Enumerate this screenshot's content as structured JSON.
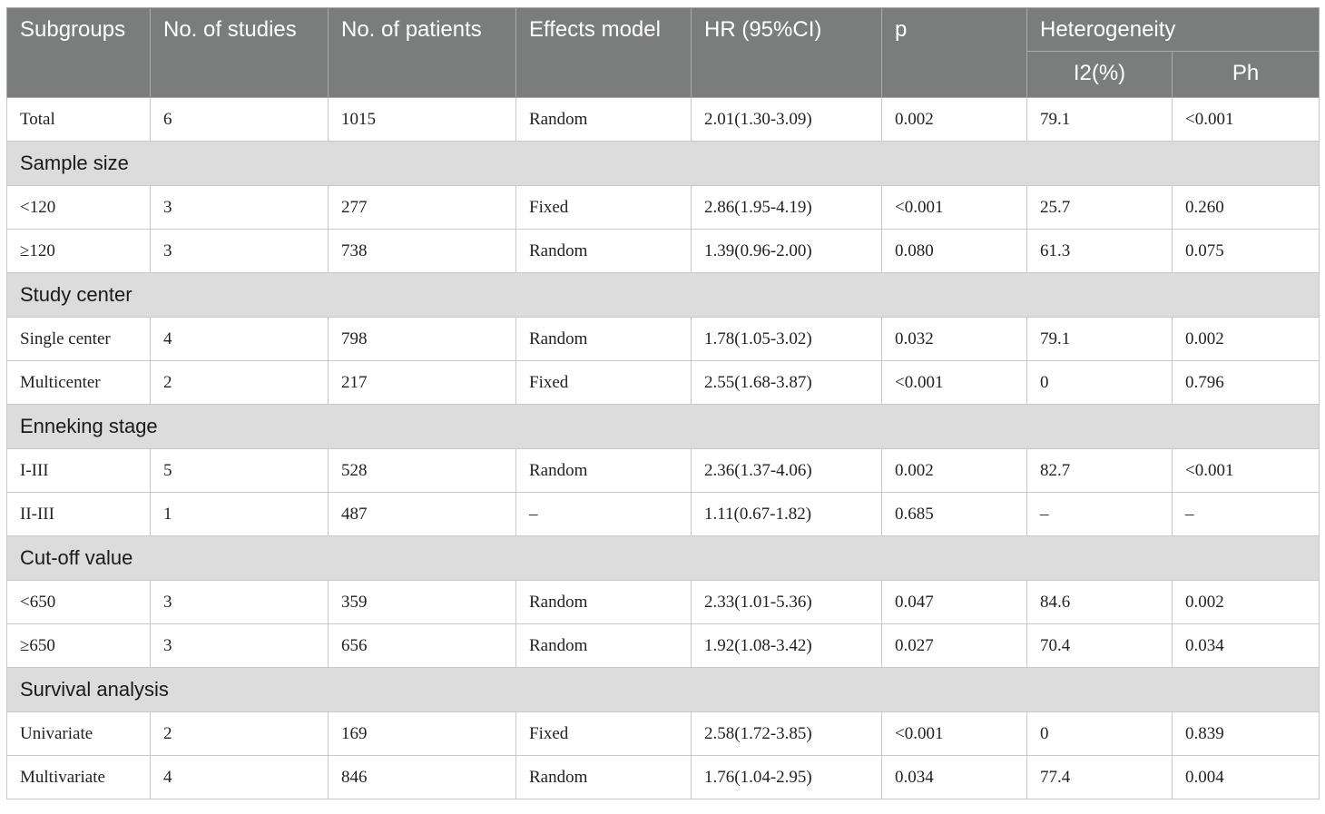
{
  "headers": {
    "subgroups": "Subgroups",
    "no_studies": "No. of studies",
    "no_patients": "No. of patients",
    "effects_model": "Effects model",
    "hr": "HR (95%CI)",
    "p": "p",
    "heterogeneity": "Heterogeneity",
    "i2": "I2(%)",
    "ph": "Ph"
  },
  "rows": [
    {
      "type": "data",
      "cells": [
        "Total",
        "6",
        "1015",
        "Random",
        "2.01(1.30-3.09)",
        "0.002",
        "79.1",
        "<0.001"
      ]
    },
    {
      "type": "group",
      "label": "Sample size"
    },
    {
      "type": "data",
      "cells": [
        "<120",
        "3",
        "277",
        "Fixed",
        "2.86(1.95-4.19)",
        "<0.001",
        "25.7",
        "0.260"
      ]
    },
    {
      "type": "data",
      "cells": [
        "≥120",
        "3",
        "738",
        "Random",
        "1.39(0.96-2.00)",
        "0.080",
        "61.3",
        "0.075"
      ]
    },
    {
      "type": "group",
      "label": "Study center"
    },
    {
      "type": "data",
      "cells": [
        "Single center",
        "4",
        "798",
        "Random",
        "1.78(1.05-3.02)",
        "0.032",
        "79.1",
        "0.002"
      ]
    },
    {
      "type": "data",
      "cells": [
        "Multicenter",
        "2",
        "217",
        "Fixed",
        "2.55(1.68-3.87)",
        "<0.001",
        "0",
        "0.796"
      ]
    },
    {
      "type": "group",
      "label": "Enneking stage"
    },
    {
      "type": "data",
      "cells": [
        "I-III",
        "5",
        "528",
        "Random",
        "2.36(1.37-4.06)",
        "0.002",
        "82.7",
        "<0.001"
      ]
    },
    {
      "type": "data",
      "cells": [
        "II-III",
        "1",
        "487",
        "–",
        "1.11(0.67-1.82)",
        "0.685",
        "–",
        "–"
      ]
    },
    {
      "type": "group",
      "label": "Cut-off value"
    },
    {
      "type": "data",
      "cells": [
        "<650",
        "3",
        "359",
        "Random",
        "2.33(1.01-5.36)",
        "0.047",
        "84.6",
        "0.002"
      ]
    },
    {
      "type": "data",
      "cells": [
        "≥650",
        "3",
        "656",
        "Random",
        "1.92(1.08-3.42)",
        "0.027",
        "70.4",
        "0.034"
      ]
    },
    {
      "type": "group",
      "label": "Survival analysis"
    },
    {
      "type": "data",
      "cells": [
        "Univariate",
        "2",
        "169",
        "Fixed",
        "2.58(1.72-3.85)",
        "<0.001",
        "0",
        "0.839"
      ]
    },
    {
      "type": "data",
      "cells": [
        "Multivariate",
        "4",
        "846",
        "Random",
        "1.76(1.04-2.95)",
        "0.034",
        "77.4",
        "0.004"
      ]
    }
  ]
}
